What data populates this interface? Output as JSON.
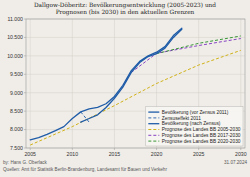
{
  "chart_data": {
    "type": "line",
    "title": "Dallgow-Döberitz: Bevölkerungsentwicklung (2005-2023) und\nPrognosen (bis 2030) in den aktuellen Grenzen",
    "annotations": [
      "by: Hans G. Oberlack",
      "Quellen: Amt für Statistik Berlin-Brandenburg, Landesamt für Bauen und Verkehr",
      "31.07.2024"
    ],
    "xlim": [
      2004.5,
      2030.5
    ],
    "ylim": [
      7500,
      11000
    ],
    "xticks": [
      2005,
      2010,
      2015,
      2020,
      2025,
      2030
    ],
    "yticks": [
      {
        "value": 7500,
        "label": "7.500"
      },
      {
        "value": 8000,
        "label": "8.000"
      },
      {
        "value": 8500,
        "label": "8.500"
      },
      {
        "value": 9000,
        "label": "9.000"
      },
      {
        "value": 9500,
        "label": "9.500"
      },
      {
        "value": 10000,
        "label": "10.000"
      },
      {
        "value": 10500,
        "label": "10.500"
      },
      {
        "value": 11000,
        "label": "11.000"
      }
    ],
    "grid": true,
    "legend": "lower right",
    "series": [
      {
        "name": "Bevölkerung (vor Zensus 2011)",
        "color": "#1f5ca8",
        "line_style": "solid",
        "x": [
          2005,
          2006,
          2007,
          2008,
          2009,
          2010,
          2011,
          2012,
          2013,
          2014,
          2015,
          2016,
          2017,
          2018,
          2019,
          2020,
          2021,
          2022,
          2023
        ],
        "values": [
          7720,
          7780,
          7870,
          7970,
          8080,
          8300,
          8480,
          8560,
          8600,
          8700,
          8900,
          9200,
          9600,
          9850,
          10000,
          10100,
          10250,
          10550,
          10750
        ]
      },
      {
        "name": "Zensuseffekt 2011",
        "color": "#1f5ca8",
        "line_style": "dashed",
        "x": [
          2011,
          2012
        ],
        "values": [
          8480,
          8200
        ]
      },
      {
        "name": "Bevölkerung (nach Zensus)",
        "color": "#1f5ca8",
        "line_style": "solid",
        "x": [
          2011,
          2012,
          2013,
          2014,
          2015,
          2016,
          2017,
          2018,
          2019,
          2020,
          2021,
          2022,
          2023
        ],
        "values": [
          8200,
          8300,
          8400,
          8600,
          8850,
          9150,
          9550,
          9820,
          9980,
          10060,
          10210,
          10500,
          10720
        ]
      },
      {
        "name": "Prognose des Landes BB 2005-2030",
        "color": "#ccaa00",
        "line_style": "dashed",
        "x": [
          2005,
          2010,
          2015,
          2020,
          2025,
          2030
        ],
        "values": [
          7580,
          8080,
          8650,
          9250,
          9750,
          10150
        ]
      },
      {
        "name": "Prognose des Landes BB 2017-2030",
        "color": "#7b2fbe",
        "line_style": "dashed",
        "x": [
          2017,
          2020,
          2025,
          2030
        ],
        "values": [
          9550,
          10070,
          10280,
          10470
        ]
      },
      {
        "name": "Prognose des Landes BB 2020-2030",
        "color": "#228B22",
        "line_style": "dashed",
        "x": [
          2020,
          2025,
          2030
        ],
        "values": [
          10060,
          10340,
          10540
        ]
      }
    ]
  }
}
